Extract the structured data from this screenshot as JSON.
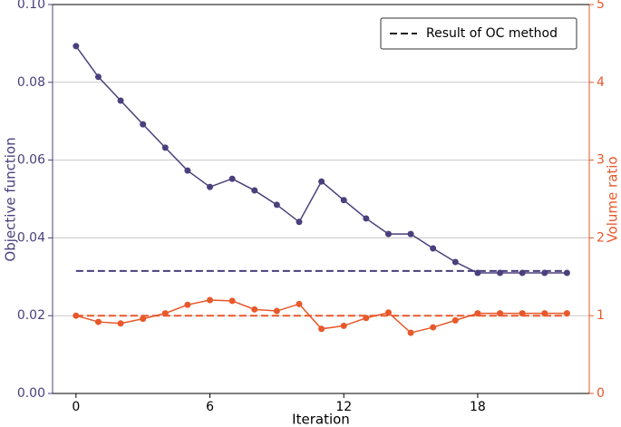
{
  "chart_data": {
    "type": "line",
    "x_label": "Iteration",
    "y_label": "Objective function",
    "y2_label": "Volume ratio",
    "x": [
      0,
      1,
      2,
      3,
      4,
      5,
      6,
      7,
      8,
      9,
      10,
      11,
      12,
      13,
      14,
      15,
      16,
      17,
      18,
      19,
      20,
      21,
      22
    ],
    "series": [
      {
        "color": "#4b3f7c",
        "values": [
          0.0893,
          0.0814,
          0.0753,
          0.0692,
          0.0632,
          0.0573,
          0.0531,
          0.0552,
          0.0522,
          0.0485,
          0.0441,
          0.0545,
          0.0497,
          0.045,
          0.041,
          0.041,
          0.0373,
          0.0338,
          0.031,
          0.031,
          0.031,
          0.031,
          0.031
        ]
      },
      {
        "color": "#e8582a",
        "axis": "y2",
        "values": [
          1.0,
          0.92,
          0.9,
          0.96,
          1.03,
          1.14,
          1.2,
          1.19,
          1.08,
          1.06,
          1.15,
          0.83,
          0.87,
          0.97,
          1.04,
          0.78,
          0.85,
          0.94,
          1.03,
          1.03,
          1.03,
          1.03,
          1.03
        ]
      }
    ],
    "oc_results": {
      "name": "Result of OC method",
      "legend_color": "#1a1a1a",
      "x": [
        0,
        22
      ],
      "lines": [
        {
          "color": "#4b3f7c",
          "values": [
            0.0315,
            0.0315
          ]
        },
        {
          "color": "#e8582a",
          "axis": "y2",
          "values": [
            1,
            1
          ]
        }
      ]
    },
    "legend": "upper right",
    "xlim": [
      -1.05,
      23
    ],
    "xticks": [
      0,
      6,
      12,
      18
    ],
    "ylim": [
      0,
      0.1
    ],
    "yticks": [
      {
        "value": 0,
        "label": "0.00"
      },
      {
        "value": 0.02,
        "label": "0.02"
      },
      {
        "value": 0.04,
        "label": "0.04"
      },
      {
        "value": 0.06,
        "label": "0.06"
      },
      {
        "value": 0.08,
        "label": "0.08"
      },
      {
        "value": 0.1,
        "label": "0.10"
      }
    ],
    "y2lim": [
      0,
      5
    ],
    "y2ticks": [
      0,
      1,
      2,
      3,
      4,
      5
    ],
    "grid": true
  }
}
